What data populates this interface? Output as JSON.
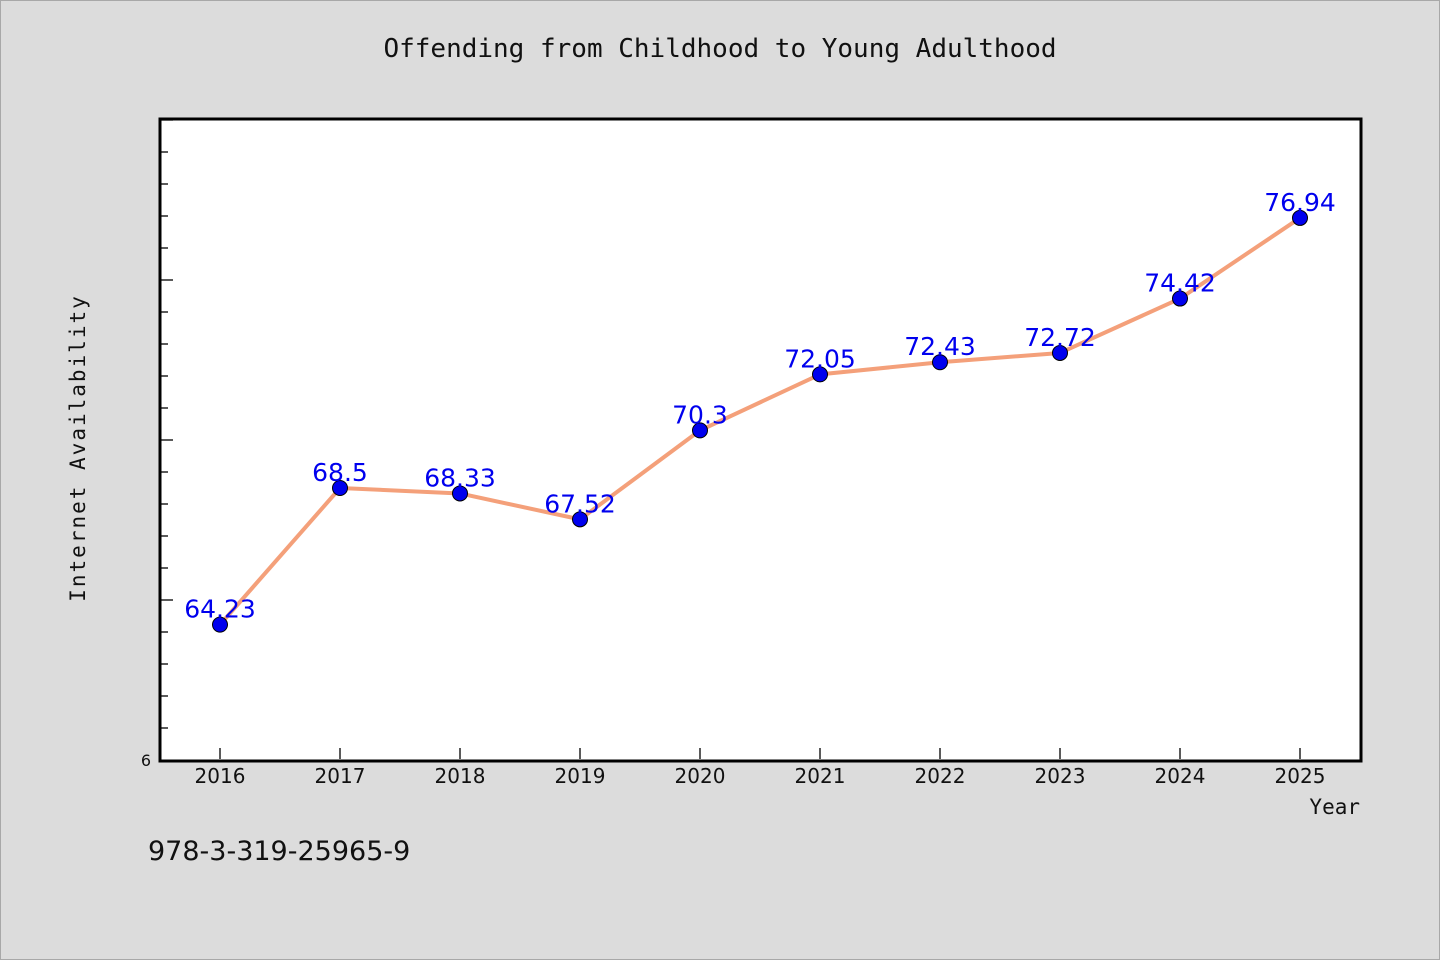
{
  "chart_data": {
    "type": "line",
    "title": "Offending from Childhood to Young Adulthood",
    "xlabel": "Year",
    "ylabel": "Internet Availability",
    "x": [
      "2016",
      "2017",
      "2018",
      "2019",
      "2020",
      "2021",
      "2022",
      "2023",
      "2024",
      "2025"
    ],
    "series": [
      {
        "values": [
          64.23,
          68.5,
          68.33,
          67.52,
          70.3,
          72.05,
          72.43,
          72.72,
          74.42,
          76.94
        ],
        "labels": [
          "64.23",
          "68.5",
          "68.33",
          "67.52",
          "70.3",
          "72.05",
          "72.43",
          "72.72",
          "74.42",
          "76.94"
        ]
      }
    ],
    "ytick_labels": [
      "6"
    ],
    "ylim": [
      60,
      80
    ],
    "grid": false,
    "line_color": "#f4a07a",
    "marker_color": "#0000ee",
    "label_color": "#0000ee"
  },
  "footer": {
    "isbn": "978-3-319-25965-9"
  }
}
